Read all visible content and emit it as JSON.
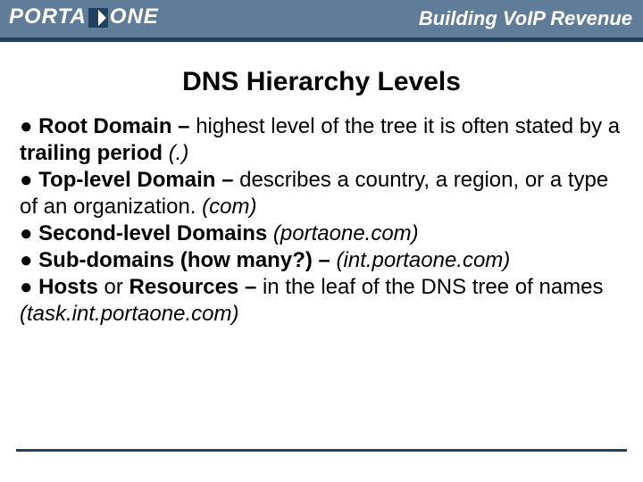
{
  "header": {
    "logo_left": "PORTA",
    "logo_right": "ONE",
    "tagline": "Building VoIP Revenue",
    "bar_color": "#5f7d98",
    "underline_color": "#22415e"
  },
  "title": {
    "text": "DNS Hierarchy Levels",
    "fontsize": 30,
    "color": "#000000"
  },
  "body": {
    "fontsize": 24,
    "color": "#000000",
    "bullets": [
      {
        "runs": [
          {
            "t": "● ",
            "b": false,
            "i": false
          },
          {
            "t": "Root Domain – ",
            "b": true,
            "i": false
          },
          {
            "t": "highest level of the tree it is often stated by a ",
            "b": false,
            "i": false
          },
          {
            "t": "trailing period ",
            "b": true,
            "i": false
          },
          {
            "t": "(.)",
            "b": false,
            "i": true
          }
        ]
      },
      {
        "runs": [
          {
            "t": "● ",
            "b": false,
            "i": false
          },
          {
            "t": "Top-level Domain – ",
            "b": true,
            "i": false
          },
          {
            "t": "describes a country, a region, or a type of an organization. ",
            "b": false,
            "i": false
          },
          {
            "t": "(com)",
            "b": false,
            "i": true
          }
        ]
      },
      {
        "runs": [
          {
            "t": "● ",
            "b": false,
            "i": false
          },
          {
            "t": "Second-level Domains ",
            "b": true,
            "i": false
          },
          {
            "t": "(portaone.com)",
            "b": false,
            "i": true
          }
        ]
      },
      {
        "runs": [
          {
            "t": "● ",
            "b": false,
            "i": false
          },
          {
            "t": "Sub-domains (how many?) – ",
            "b": true,
            "i": false
          },
          {
            "t": "(int.portaone.com)",
            "b": false,
            "i": true
          }
        ]
      },
      {
        "runs": [
          {
            "t": "● ",
            "b": false,
            "i": false
          },
          {
            "t": "Hosts ",
            "b": true,
            "i": false
          },
          {
            "t": "or ",
            "b": false,
            "i": false
          },
          {
            "t": "Resources – ",
            "b": true,
            "i": false
          },
          {
            "t": " in the leaf of the DNS tree of names  ",
            "b": false,
            "i": false
          },
          {
            "t": "(task.int.portaone.com)",
            "b": false,
            "i": true
          }
        ]
      }
    ]
  },
  "footer": {
    "line_color": "#22415e"
  }
}
